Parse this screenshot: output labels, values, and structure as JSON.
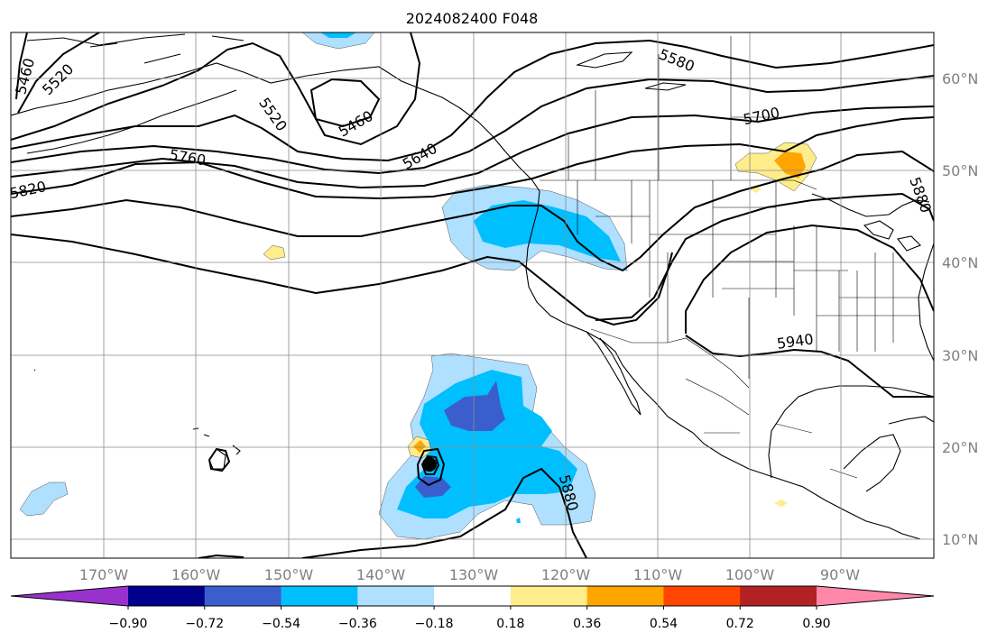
{
  "title": "2024082400 F048",
  "longitude_labels": [
    "170°W",
    "160°W",
    "150°W",
    "140°W",
    "130°W",
    "120°W",
    "110°W",
    "100°W",
    "90°W"
  ],
  "latitude_labels": [
    "60°N",
    "50°N",
    "40°N",
    "30°N",
    "20°N",
    "10°N"
  ],
  "contour_labels": [
    "5460",
    "5520",
    "5520",
    "5460",
    "5580",
    "5640",
    "5700",
    "5760",
    "5820",
    "5880",
    "5880",
    "5940"
  ],
  "colorbar": {
    "colors": [
      "#9932cc",
      "#00008b",
      "#3a5fcd",
      "#00bfff",
      "#b0e0ff",
      "#ffffff",
      "#ffec8b",
      "#ffa500",
      "#ff4500",
      "#b22222",
      "#ff88aa"
    ],
    "tick_labels": [
      "−0.90",
      "−0.72",
      "−0.54",
      "−0.36",
      "−0.18",
      "0.18",
      "0.36",
      "0.54",
      "0.72",
      "0.90"
    ]
  }
}
